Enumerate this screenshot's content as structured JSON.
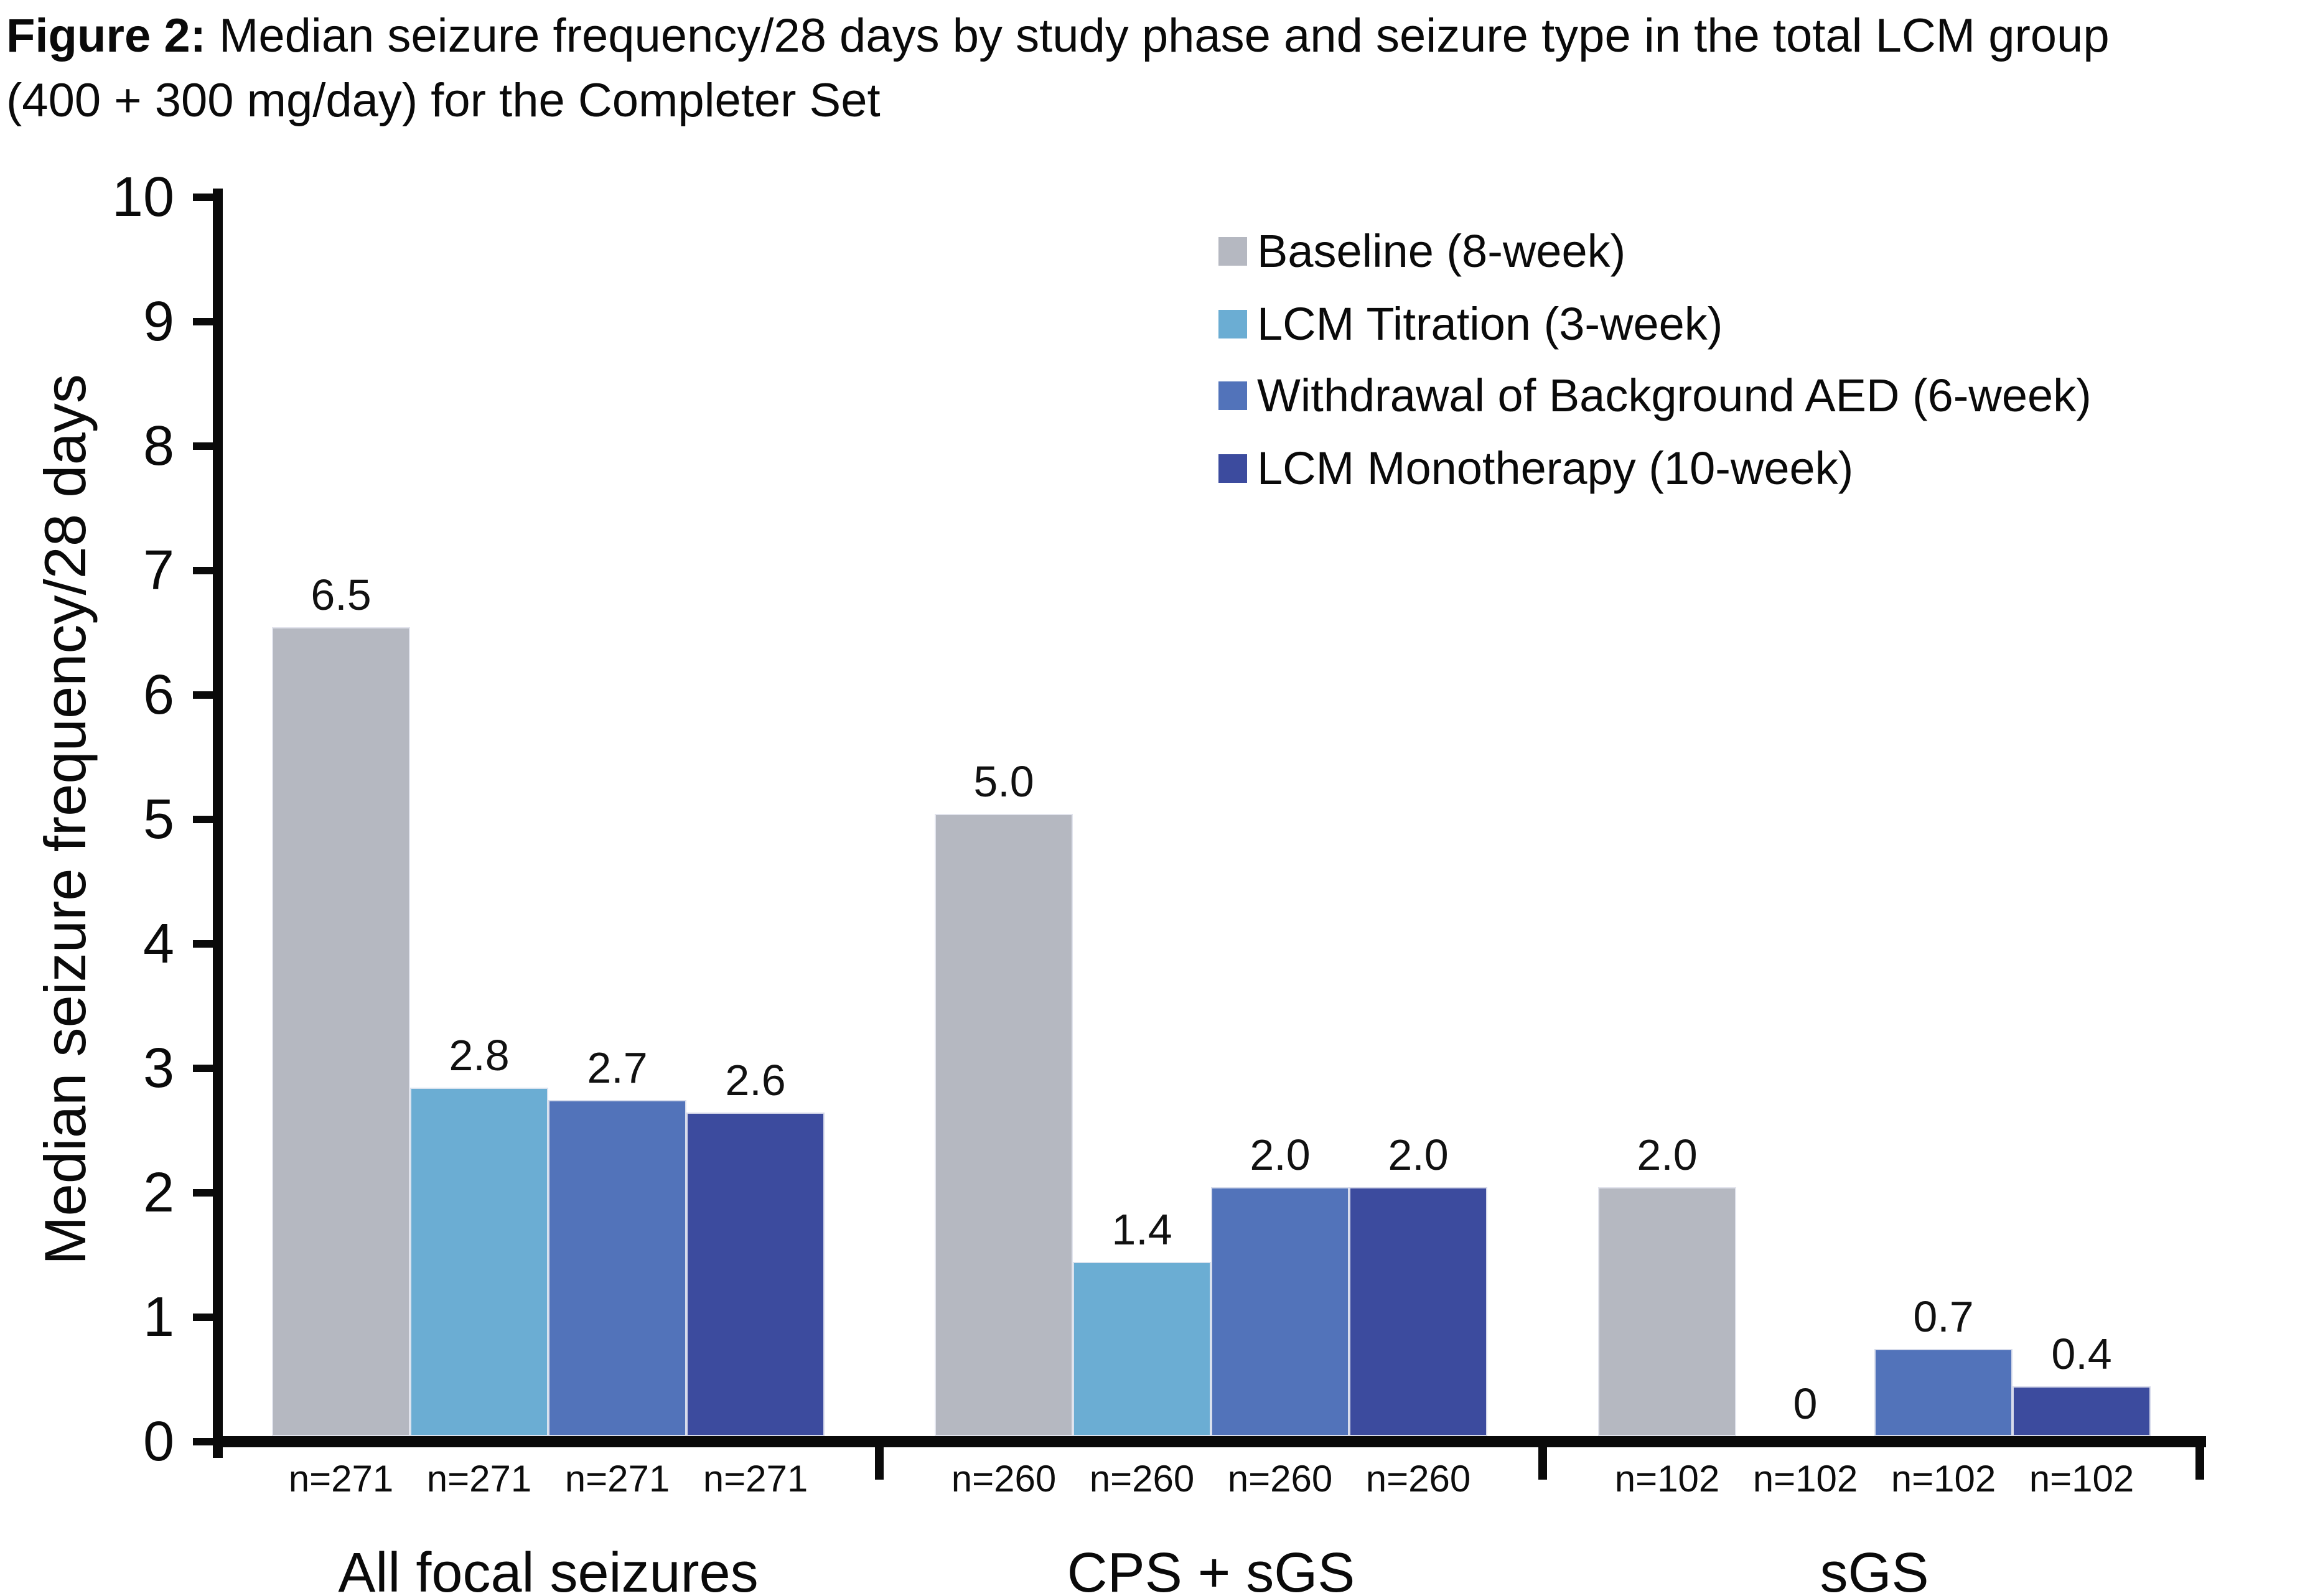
{
  "title": {
    "prefix": "Figure 2:",
    "line1_rest": " Median seizure frequency/28 days by study phase and seizure type in the total LCM group",
    "line2": "(400 + 300 mg/day) for the Completer Set"
  },
  "chart_data": {
    "type": "bar",
    "title": "Figure 2: Median seizure frequency/28 days by study phase and seizure type in the total LCM group (400 + 300 mg/day) for the Completer Set",
    "ylabel": "Median seizure frequency/28 days",
    "xlabel": "",
    "ylim": [
      0,
      10
    ],
    "yticks": [
      "0",
      "1",
      "2",
      "3",
      "4",
      "5",
      "6",
      "7",
      "8",
      "9",
      "10"
    ],
    "grid": false,
    "legend_position": "top-right",
    "categories": [
      "All focal seizures",
      "CPS + sGS",
      "sGS"
    ],
    "series": [
      {
        "name": "Baseline (8-week)",
        "color": "#b5b8c1",
        "values": [
          6.5,
          5.0,
          2.0
        ]
      },
      {
        "name": "LCM Titration (3-week)",
        "color": "#6badd3",
        "values": [
          2.8,
          1.4,
          0
        ]
      },
      {
        "name": "Withdrawal of Background AED (6-week)",
        "color": "#5273ba",
        "values": [
          2.7,
          2.0,
          0.7
        ]
      },
      {
        "name": "LCM Monotherapy (10-week)",
        "color": "#3c4b9e",
        "values": [
          2.6,
          2.0,
          0.4
        ]
      }
    ],
    "value_labels": [
      [
        "6.5",
        "2.8",
        "2.7",
        "2.6"
      ],
      [
        "5.0",
        "1.4",
        "2.0",
        "2.0"
      ],
      [
        "2.0",
        "0",
        "0.7",
        "0.4"
      ]
    ],
    "n_labels": [
      [
        "n=271",
        "n=271",
        "n=271",
        "n=271"
      ],
      [
        "n=260",
        "n=260",
        "n=260",
        "n=260"
      ],
      [
        "n=102",
        "n=102",
        "n=102",
        "n=102"
      ]
    ]
  },
  "colors": {
    "axis": "#0a0a0a",
    "baseline_series": "#b5b8c1",
    "titration_series": "#6badd3",
    "withdrawal_series": "#5273ba",
    "monotherapy_series": "#3c4b9e",
    "background": "#ffffff"
  }
}
